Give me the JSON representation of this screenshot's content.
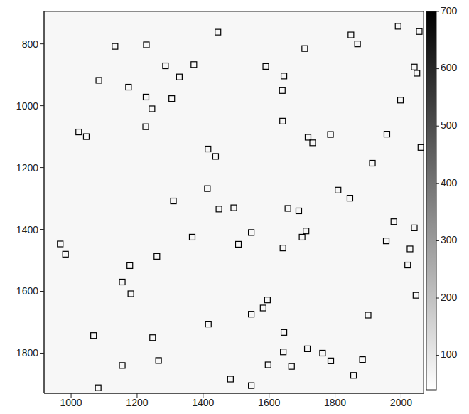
{
  "chart_data": {
    "type": "scatter",
    "marker": "square",
    "color": "#000000",
    "x": [
      1133,
      1228,
      1445,
      1708,
      1848,
      1868,
      1991,
      2055,
      1084,
      1174,
      1286,
      1328,
      1372,
      1590,
      1645,
      1640,
      1998,
      2040,
      2048,
      1227,
      1245,
      1305,
      1226,
      1023,
      1046,
      1641,
      1718,
      1732,
      1786,
      1957,
      2060,
      1415,
      1438,
      1913,
      1413,
      1809,
      1845,
      1310,
      1448,
      1493,
      1657,
      1690,
      1546,
      1712,
      1700,
      1367,
      1507,
      1642,
      1978,
      2040,
      1955,
      2027,
      967,
      983,
      1260,
      1178,
      2020,
      1155,
      1181,
      2045,
      1595,
      1582,
      1546,
      1416,
      1900,
      1068,
      1247,
      1645,
      1643,
      1716,
      1762,
      1787,
      1883,
      1856,
      1155,
      1265,
      1597,
      1668,
      1082,
      1483,
      1546
    ],
    "values": [
      808,
      803,
      762,
      815,
      771,
      800,
      743,
      760,
      918,
      940,
      871,
      907,
      867,
      873,
      904,
      951,
      982,
      875,
      895,
      972,
      1010,
      977,
      1068,
      1085,
      1100,
      1050,
      1102,
      1120,
      1093,
      1092,
      1135,
      1140,
      1164,
      1186,
      1268,
      1273,
      1299,
      1308,
      1334,
      1330,
      1332,
      1340,
      1410,
      1405,
      1425,
      1425,
      1448,
      1460,
      1375,
      1395,
      1437,
      1463,
      1447,
      1480,
      1487,
      1517,
      1515,
      1570,
      1608,
      1613,
      1628,
      1654,
      1674,
      1706,
      1677,
      1743,
      1750,
      1733,
      1796,
      1786,
      1800,
      1825,
      1821,
      1872,
      1840,
      1824,
      1838,
      1843,
      1912,
      1884,
      1905
    ],
    "xlim": [
      918,
      2068
    ],
    "xticks": [
      1000,
      1200,
      1400,
      1600,
      1800,
      2000
    ],
    "ylim": [
      695,
      1930
    ],
    "yticks": [
      800,
      1000,
      1200,
      1400,
      1600,
      1800
    ],
    "image_value": 60,
    "colorbar": {
      "range": [
        40,
        700
      ],
      "ticks": [
        100,
        200,
        300,
        400,
        500,
        600,
        700
      ]
    }
  }
}
